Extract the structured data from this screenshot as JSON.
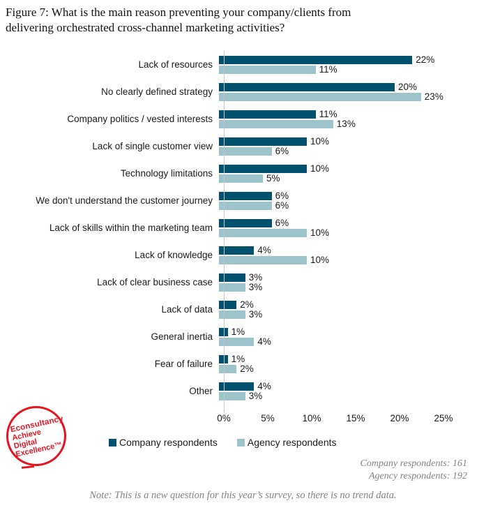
{
  "title": "Figure 7: What is the main reason preventing your company/clients from delivering orchestrated cross-channel marketing activities?",
  "chart_data": {
    "type": "bar",
    "orientation": "horizontal",
    "title": "Figure 7: What is the main reason preventing your company/clients from delivering orchestrated cross-channel marketing activities?",
    "categories": [
      "Lack of resources",
      "No clearly defined strategy",
      "Company politics / vested interests",
      "Lack of single customer view",
      "Technology limitations",
      "We don't understand the customer journey",
      "Lack of skills within the marketing team",
      "Lack of knowledge",
      "Lack of clear business case",
      "Lack of data",
      "General inertia",
      "Fear of failure",
      "Other"
    ],
    "series": [
      {
        "name": "Company respondents",
        "color": "#00506e",
        "values": [
          22,
          20,
          11,
          10,
          10,
          6,
          6,
          4,
          3,
          2,
          1,
          1,
          4
        ]
      },
      {
        "name": "Agency respondents",
        "color": "#9ec4cb",
        "values": [
          11,
          23,
          13,
          6,
          5,
          6,
          10,
          10,
          3,
          3,
          4,
          2,
          3
        ]
      }
    ],
    "value_suffix": "%",
    "xlim": [
      0,
      25
    ],
    "x_tick_step": 5,
    "x_ticks": [
      "0%",
      "5%",
      "10%",
      "15%",
      "20%",
      "25%"
    ],
    "grid": false,
    "legend_position": "bottom",
    "data_labels": true
  },
  "footer": {
    "company_count": "Company respondents: 161",
    "agency_count": "Agency respondents: 192",
    "note": "Note: This is a new question for this year’s survey, so there is no trend data."
  },
  "logo": {
    "line1": "Econsultancy",
    "line2": "Achieve",
    "line3": "Digital",
    "line4": "Excellence™",
    "color": "#e8131f"
  },
  "colors": {
    "company_bar": "#00506e",
    "agency_bar": "#9ec4cb",
    "axis_line": "#c6c6c6",
    "footer_text": "#7d838a"
  }
}
